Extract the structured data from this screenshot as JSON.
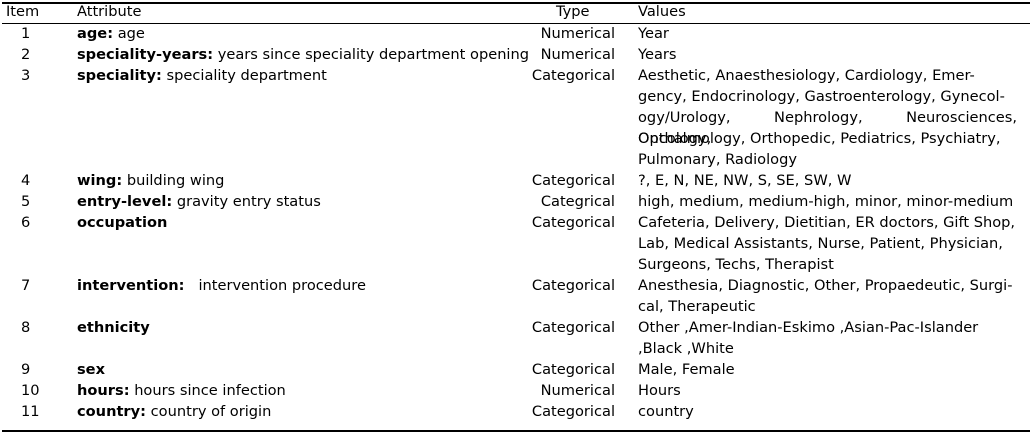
{
  "header": {
    "item": "Item",
    "attribute": "Attribute",
    "type": "Type",
    "values": "Values"
  },
  "rows": [
    {
      "item": "1",
      "name": "age",
      "desc": "age",
      "type": "Numerical",
      "values": "Year"
    },
    {
      "item": "2",
      "name": "speciality-years",
      "desc": "years since speciality department opening",
      "type": "Numerical",
      "values": "Years"
    },
    {
      "item": "3",
      "name": "speciality",
      "desc": "speciality department",
      "type": "Categorical",
      "values_lines": [
        "Aesthetic, Anaesthesiology, Cardiology, Emer-",
        "gency, Endocrinology, Gastroenterology, Gynecol-",
        "ogy/Urology, Nephrology, Neurosciences, Oncology,",
        "Opthalmology, Orthopedic, Pediatrics, Psychiatry,",
        "Pulmonary, Radiology"
      ]
    },
    {
      "item": "4",
      "name": "wing",
      "desc": "building wing",
      "type": "Categorical",
      "values": "?, E, N, NE, NW, S, SE, SW, W"
    },
    {
      "item": "5",
      "name": "entry-level",
      "desc": "gravity entry status",
      "type": "Categrical",
      "values": "high, medium, medium-high, minor, minor-medium"
    },
    {
      "item": "6",
      "name": "occupation",
      "desc": "",
      "type": "Categorical",
      "values_lines": [
        "Cafeteria, Delivery, Dietitian, ER doctors, Gift Shop,",
        "Lab, Medical Assistants, Nurse, Patient, Physician,",
        "Surgeons, Techs, Therapist"
      ]
    },
    {
      "item": "7",
      "name": "intervention",
      "desc": "intervention procedure",
      "type": "Categorical",
      "values_lines": [
        "Anesthesia, Diagnostic, Other, Propaedeutic, Surgi-",
        "cal, Therapeutic"
      ]
    },
    {
      "item": "8",
      "name": "ethnicity",
      "desc": "",
      "type": "Categorical",
      "values_lines": [
        "Other ,Amer-Indian-Eskimo ,Asian-Pac-Islander",
        ",Black ,White"
      ]
    },
    {
      "item": "9",
      "name": "sex",
      "desc": "",
      "type": "Categorical",
      "values": "Male, Female"
    },
    {
      "item": "10",
      "name": "hours",
      "desc": "hours since infection",
      "type": "Numerical",
      "values": "Hours"
    },
    {
      "item": "11",
      "name": "country",
      "desc": "country of origin",
      "type": "Categorical",
      "values": "country"
    }
  ]
}
